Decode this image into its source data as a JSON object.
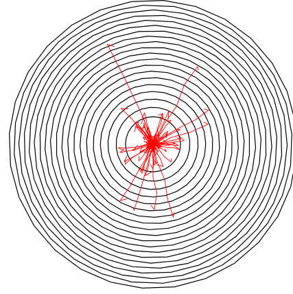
{
  "drawing": {
    "background": "#ffffff",
    "ring_color": "#000000",
    "ray_color": "#ff0000",
    "ring_count": 20,
    "ring_shape": "polygon",
    "ray_count": 60,
    "ray_style": "jagged",
    "center_burst": true
  }
}
